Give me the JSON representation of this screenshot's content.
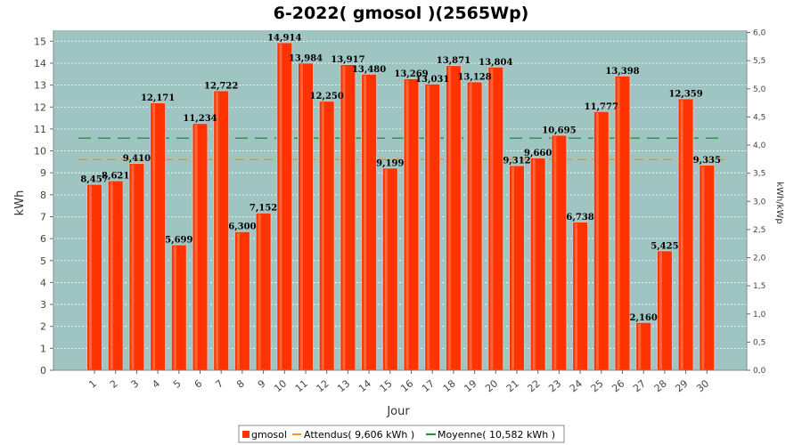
{
  "chart_data": {
    "type": "bar",
    "title": "6-2022( gmosol )(2565Wp)",
    "xlabel": "Jour",
    "ylabel": "kWh",
    "y2label": "kWh/kWp",
    "ylim": [
      0,
      15.5
    ],
    "y2lim": [
      0,
      6.04
    ],
    "yticks": [
      0,
      1,
      2,
      3,
      4,
      5,
      6,
      7,
      8,
      9,
      10,
      11,
      12,
      13,
      14,
      15
    ],
    "y2ticks": [
      "0,0",
      "0,5",
      "1,0",
      "1,5",
      "2,0",
      "2,5",
      "3,0",
      "3,5",
      "4,0",
      "4,5",
      "5,0",
      "5,5",
      "6,0"
    ],
    "categories": [
      "1",
      "2",
      "3",
      "4",
      "5",
      "6",
      "7",
      "8",
      "9",
      "10",
      "11",
      "12",
      "13",
      "14",
      "15",
      "16",
      "17",
      "18",
      "19",
      "20",
      "21",
      "22",
      "23",
      "24",
      "25",
      "26",
      "27",
      "28",
      "29",
      "30"
    ],
    "series": [
      {
        "name": "gmosol",
        "values": [
          8.457,
          8.621,
          9.41,
          12.171,
          5.699,
          11.234,
          12.722,
          6.3,
          7.152,
          14.914,
          13.984,
          12.25,
          13.917,
          13.48,
          9.199,
          13.269,
          13.031,
          13.871,
          13.128,
          13.804,
          9.312,
          9.66,
          10.695,
          6.738,
          11.777,
          13.398,
          2.16,
          5.425,
          12.359,
          9.335
        ],
        "labels": [
          "8,457",
          "8,621",
          "9,410",
          "12,171",
          "5,699",
          "11,234",
          "12,722",
          "6,300",
          "7,152",
          "14,914",
          "13,984",
          "12,250",
          "13,917",
          "13,480",
          "9,199",
          "13,269",
          "13,031",
          "13,871",
          "13,128",
          "13,804",
          "9,312",
          "9,660",
          "10,695",
          "6,738",
          "11,777",
          "13,398",
          "2,160",
          "5,425",
          "12,359",
          "9,335"
        ],
        "color": "#ff3300"
      }
    ],
    "reference_lines": [
      {
        "name": "Attendus( 9,606 kWh )",
        "value": 9.606,
        "color": "#ff8c1a",
        "style": "dashed"
      },
      {
        "name": "Moyenne( 10,582 kWh )",
        "value": 10.582,
        "color": "#1a9933",
        "style": "dashed"
      }
    ],
    "grid": true,
    "legend_position": "bottom",
    "plot_background": "#9fc5c3"
  }
}
